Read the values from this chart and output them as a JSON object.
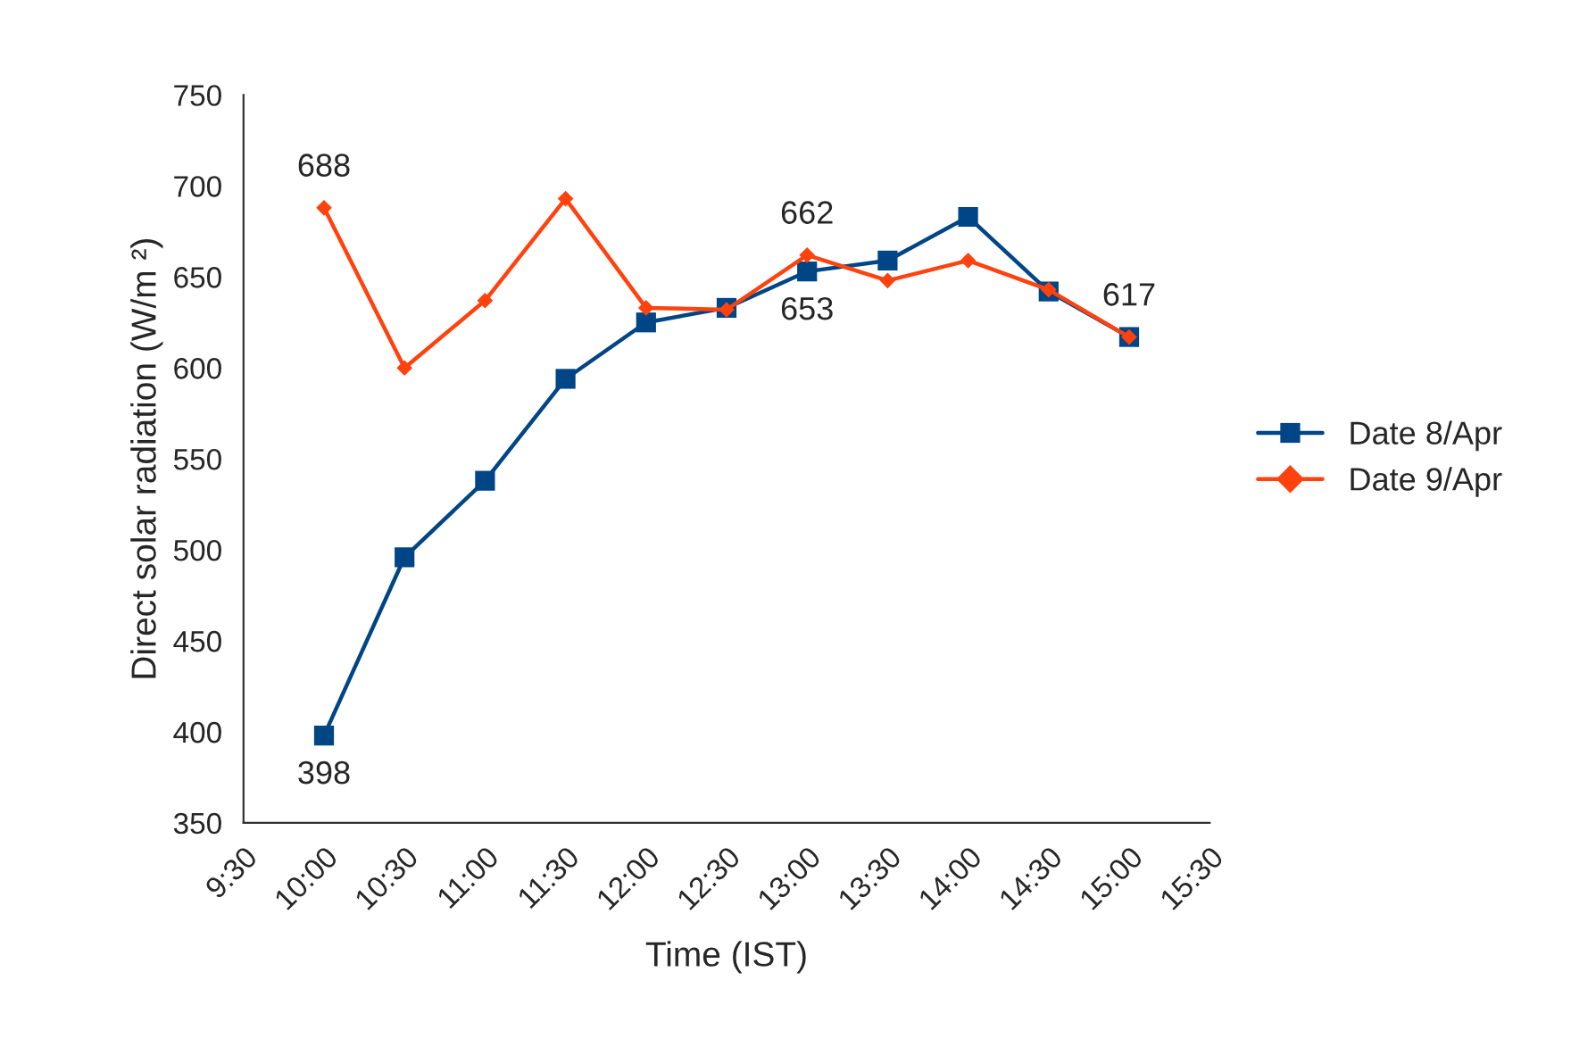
{
  "chart_data": {
    "type": "line",
    "xlabel": "Time (IST)",
    "ylabel": "Direct solar radiation (W/m ²)",
    "x": [
      10,
      10.5,
      11,
      11.5,
      12,
      12.5,
      13,
      13.5,
      14,
      14.5,
      15
    ],
    "series": [
      {
        "name": "Date 8/Apr",
        "color": "#004586",
        "marker": "square",
        "values": [
          398,
          496,
          538,
          594,
          625,
          633,
          653,
          659,
          683,
          642,
          617
        ],
        "value_labels": [
          "398",
          null,
          null,
          null,
          null,
          null,
          "653",
          null,
          null,
          null,
          null
        ]
      },
      {
        "name": "Date 9/Apr",
        "color": "#ff420e",
        "marker": "diamond",
        "values": [
          688,
          600,
          637,
          693,
          633,
          632,
          662,
          648,
          659,
          643,
          617
        ],
        "value_labels": [
          "688",
          null,
          null,
          null,
          null,
          null,
          "662",
          null,
          null,
          null,
          "617"
        ]
      }
    ],
    "xlim": [
      9.5,
      15.5
    ],
    "xticks": [
      {
        "value": 9.5,
        "label": "9:30"
      },
      {
        "value": 10,
        "label": "10:00"
      },
      {
        "value": 10.5,
        "label": "10:30"
      },
      {
        "value": 11,
        "label": "11:00"
      },
      {
        "value": 11.5,
        "label": "11:30"
      },
      {
        "value": 12,
        "label": "12:00"
      },
      {
        "value": 12.5,
        "label": "12:30"
      },
      {
        "value": 13,
        "label": "13:00"
      },
      {
        "value": 13.5,
        "label": "13:30"
      },
      {
        "value": 14,
        "label": "14:00"
      },
      {
        "value": 14.5,
        "label": "14:30"
      },
      {
        "value": 15,
        "label": "15:00"
      },
      {
        "value": 15.5,
        "label": "15:30"
      }
    ],
    "ylim": [
      350,
      750
    ],
    "yticks": [
      350,
      400,
      450,
      500,
      550,
      600,
      650,
      700,
      750
    ],
    "grid": false,
    "legend": "right",
    "line_style": "solid"
  }
}
